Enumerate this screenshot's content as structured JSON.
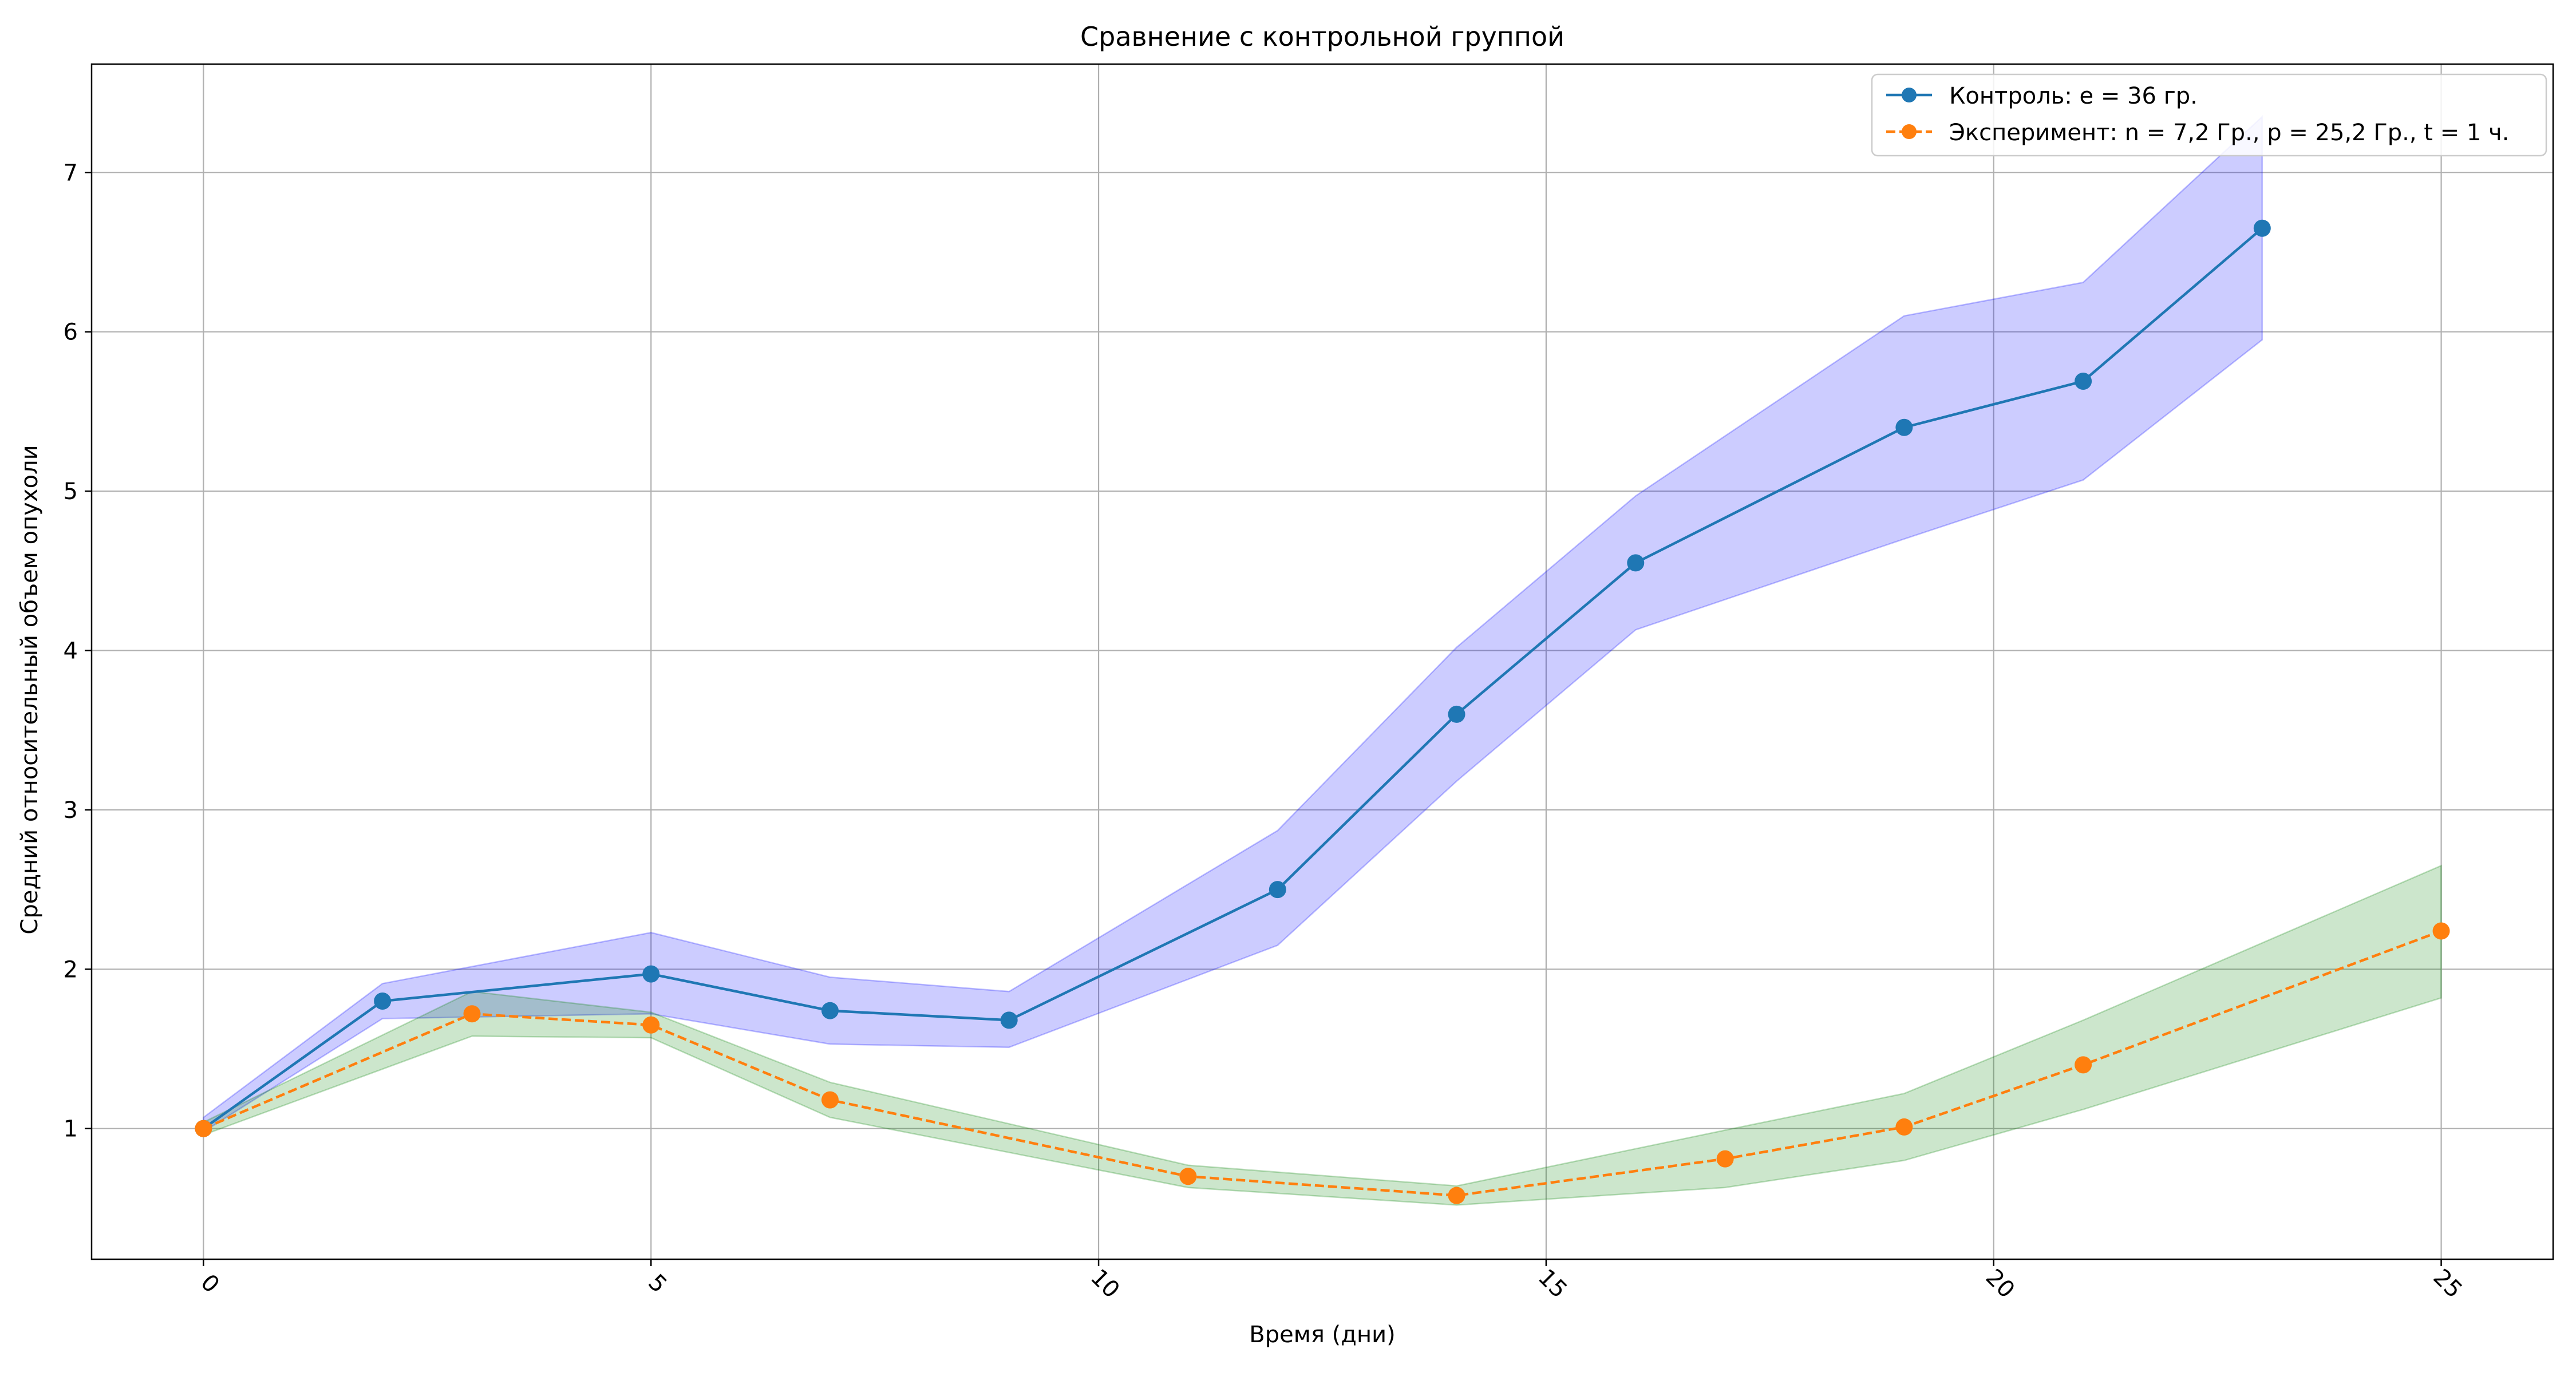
{
  "chart_data": {
    "type": "line",
    "title": "Сравнение с контрольной группой",
    "xlabel": "Время (дни)",
    "ylabel": "Средний относительный объем опухоли",
    "xlim": [
      -1.25,
      26.25
    ],
    "ylim": [
      0.18,
      7.68
    ],
    "x_ticks": [
      0,
      5,
      10,
      15,
      20,
      25
    ],
    "y_ticks": [
      1,
      2,
      3,
      4,
      5,
      6,
      7
    ],
    "grid": true,
    "legend_position": "top-right",
    "series": [
      {
        "name": "Контроль: e = 36 гр.",
        "color": "#1f77b4",
        "line_style": "solid",
        "marker": "circle",
        "band_color": "#0000ff",
        "x": [
          0,
          2,
          5,
          7,
          9,
          12,
          14,
          16,
          19,
          21,
          23
        ],
        "y": [
          1.0,
          1.8,
          1.97,
          1.74,
          1.68,
          2.5,
          3.6,
          4.55,
          5.4,
          5.69,
          6.65
        ],
        "y_lower": [
          0.98,
          1.69,
          1.72,
          1.53,
          1.51,
          2.15,
          3.18,
          4.13,
          4.7,
          5.07,
          5.95
        ],
        "y_upper": [
          1.07,
          1.91,
          2.23,
          1.95,
          1.86,
          2.87,
          4.02,
          4.97,
          6.1,
          6.31,
          7.35
        ]
      },
      {
        "name": "Эксперимент: n = 7,2 Гр., p = 25,2 Гр., t = 1 ч.",
        "color": "#ff7f0e",
        "line_style": "dashed",
        "marker": "circle",
        "band_color": "#008000",
        "x": [
          0,
          3,
          5,
          7,
          11,
          14,
          17,
          19,
          21,
          25
        ],
        "y": [
          1.0,
          1.72,
          1.65,
          1.18,
          0.7,
          0.58,
          0.81,
          1.01,
          1.4,
          2.24
        ],
        "y_lower": [
          0.96,
          1.58,
          1.57,
          1.07,
          0.63,
          0.52,
          0.63,
          0.8,
          1.12,
          1.82
        ],
        "y_upper": [
          1.04,
          1.86,
          1.73,
          1.29,
          0.77,
          0.64,
          0.99,
          1.22,
          1.68,
          2.65
        ]
      }
    ]
  }
}
